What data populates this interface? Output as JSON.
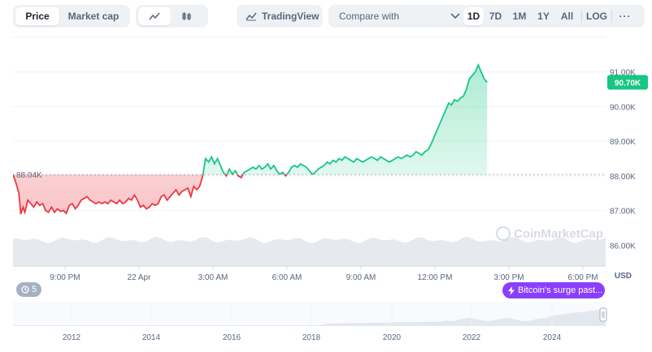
{
  "toolbar": {
    "price_tab": "Price",
    "marketcap_tab": "Market cap",
    "line_icon": "line-chart-icon",
    "candle_icon": "candlestick-icon",
    "tradingview_label": "TradingView",
    "compare_label": "Compare with",
    "ranges": [
      "1D",
      "7D",
      "1M",
      "1Y",
      "All",
      "LOG"
    ],
    "active_range": "1D",
    "more_icon": "more-dots-icon"
  },
  "chart_data": {
    "type": "area",
    "x_ticks": [
      "9:00 PM",
      "22 Apr",
      "3:00 AM",
      "6:00 AM",
      "9:00 AM",
      "12:00 PM",
      "3:00 PM",
      "6:00 PM"
    ],
    "y_ticks": [
      "91.00K",
      "90.00K",
      "89.00K",
      "88.00K",
      "87.00K",
      "86.00K"
    ],
    "y_values": [
      91000,
      90000,
      89000,
      88000,
      87000,
      86000
    ],
    "ylim": [
      85400,
      92000
    ],
    "currency_label": "USD",
    "baseline_label": "88.04K",
    "baseline_value": 88040,
    "current_label": "90.70K",
    "current_value": 90700,
    "watermark": "CoinMarketCap",
    "series": [
      {
        "points": [
          [
            0.0,
            88040
          ],
          [
            0.005,
            87800
          ],
          [
            0.01,
            87500
          ],
          [
            0.013,
            86900
          ],
          [
            0.017,
            87100
          ],
          [
            0.02,
            86950
          ],
          [
            0.025,
            87300
          ],
          [
            0.03,
            87200
          ],
          [
            0.035,
            87100
          ],
          [
            0.04,
            87250
          ],
          [
            0.045,
            87150
          ],
          [
            0.05,
            87200
          ],
          [
            0.055,
            87000
          ],
          [
            0.06,
            86950
          ],
          [
            0.065,
            87100
          ],
          [
            0.07,
            86950
          ],
          [
            0.075,
            87050
          ],
          [
            0.08,
            86980
          ],
          [
            0.085,
            87000
          ],
          [
            0.09,
            86920
          ],
          [
            0.095,
            87150
          ],
          [
            0.1,
            87200
          ],
          [
            0.105,
            87050
          ],
          [
            0.11,
            87150
          ],
          [
            0.115,
            87300
          ],
          [
            0.12,
            87350
          ],
          [
            0.125,
            87400
          ],
          [
            0.13,
            87300
          ],
          [
            0.135,
            87250
          ],
          [
            0.14,
            87200
          ],
          [
            0.145,
            87250
          ],
          [
            0.15,
            87200
          ],
          [
            0.155,
            87250
          ],
          [
            0.16,
            87200
          ],
          [
            0.165,
            87300
          ],
          [
            0.17,
            87250
          ],
          [
            0.175,
            87200
          ],
          [
            0.18,
            87300
          ],
          [
            0.185,
            87200
          ],
          [
            0.19,
            87250
          ],
          [
            0.195,
            87350
          ],
          [
            0.2,
            87300
          ],
          [
            0.205,
            87450
          ],
          [
            0.21,
            87300
          ],
          [
            0.215,
            87100
          ],
          [
            0.22,
            87150
          ],
          [
            0.225,
            87050
          ],
          [
            0.23,
            87100
          ],
          [
            0.235,
            87200
          ],
          [
            0.24,
            87150
          ],
          [
            0.245,
            87200
          ],
          [
            0.25,
            87400
          ],
          [
            0.255,
            87450
          ],
          [
            0.26,
            87300
          ],
          [
            0.265,
            87400
          ],
          [
            0.27,
            87500
          ],
          [
            0.275,
            87600
          ],
          [
            0.28,
            87450
          ],
          [
            0.285,
            87550
          ],
          [
            0.29,
            87600
          ],
          [
            0.295,
            87650
          ],
          [
            0.3,
            87400
          ],
          [
            0.305,
            87700
          ],
          [
            0.31,
            87600
          ],
          [
            0.315,
            87700
          ],
          [
            0.32,
            88000
          ],
          [
            0.325,
            88500
          ],
          [
            0.33,
            88400
          ],
          [
            0.335,
            88550
          ],
          [
            0.34,
            88350
          ],
          [
            0.345,
            88500
          ],
          [
            0.35,
            88300
          ],
          [
            0.355,
            88100
          ],
          [
            0.36,
            88000
          ],
          [
            0.365,
            88200
          ],
          [
            0.37,
            88050
          ],
          [
            0.375,
            88150
          ],
          [
            0.38,
            88000
          ],
          [
            0.385,
            87950
          ],
          [
            0.39,
            88100
          ],
          [
            0.395,
            88150
          ],
          [
            0.4,
            88200
          ],
          [
            0.405,
            88250
          ],
          [
            0.41,
            88200
          ],
          [
            0.415,
            88300
          ],
          [
            0.42,
            88200
          ],
          [
            0.425,
            88250
          ],
          [
            0.43,
            88350
          ],
          [
            0.435,
            88200
          ],
          [
            0.44,
            88300
          ],
          [
            0.445,
            88150
          ],
          [
            0.45,
            88050
          ],
          [
            0.455,
            88100
          ],
          [
            0.46,
            88000
          ],
          [
            0.465,
            88100
          ],
          [
            0.47,
            88250
          ],
          [
            0.475,
            88300
          ],
          [
            0.48,
            88250
          ],
          [
            0.485,
            88350
          ],
          [
            0.49,
            88300
          ],
          [
            0.495,
            88250
          ],
          [
            0.5,
            88150
          ],
          [
            0.505,
            88050
          ],
          [
            0.51,
            88100
          ],
          [
            0.515,
            88200
          ],
          [
            0.52,
            88250
          ],
          [
            0.525,
            88300
          ],
          [
            0.53,
            88400
          ],
          [
            0.535,
            88350
          ],
          [
            0.54,
            88450
          ],
          [
            0.545,
            88400
          ],
          [
            0.55,
            88500
          ],
          [
            0.555,
            88450
          ],
          [
            0.56,
            88550
          ],
          [
            0.565,
            88500
          ],
          [
            0.57,
            88450
          ],
          [
            0.575,
            88400
          ],
          [
            0.58,
            88500
          ],
          [
            0.585,
            88450
          ],
          [
            0.59,
            88400
          ],
          [
            0.595,
            88450
          ],
          [
            0.6,
            88500
          ],
          [
            0.605,
            88550
          ],
          [
            0.61,
            88500
          ],
          [
            0.615,
            88450
          ],
          [
            0.62,
            88550
          ],
          [
            0.625,
            88500
          ],
          [
            0.63,
            88450
          ],
          [
            0.635,
            88400
          ],
          [
            0.64,
            88450
          ],
          [
            0.645,
            88500
          ],
          [
            0.65,
            88550
          ],
          [
            0.655,
            88500
          ],
          [
            0.66,
            88550
          ],
          [
            0.665,
            88600
          ],
          [
            0.67,
            88550
          ],
          [
            0.675,
            88600
          ],
          [
            0.68,
            88700
          ],
          [
            0.685,
            88650
          ],
          [
            0.69,
            88600
          ],
          [
            0.695,
            88700
          ],
          [
            0.7,
            88750
          ],
          [
            0.705,
            88900
          ],
          [
            0.71,
            89100
          ],
          [
            0.715,
            89300
          ],
          [
            0.72,
            89500
          ],
          [
            0.725,
            89700
          ],
          [
            0.73,
            89900
          ],
          [
            0.735,
            90100
          ],
          [
            0.74,
            90050
          ],
          [
            0.745,
            90200
          ],
          [
            0.75,
            90150
          ],
          [
            0.755,
            90250
          ],
          [
            0.76,
            90300
          ],
          [
            0.765,
            90500
          ],
          [
            0.77,
            90800
          ],
          [
            0.775,
            90900
          ],
          [
            0.78,
            91000
          ],
          [
            0.785,
            91200
          ],
          [
            0.79,
            91000
          ],
          [
            0.795,
            90800
          ],
          [
            0.8,
            90700
          ]
        ]
      }
    ],
    "volume_strip": true
  },
  "events": {
    "count_label": "5",
    "news_label": "Bitcoin's surge past..."
  },
  "navigator": {
    "year_ticks": [
      "2012",
      "2014",
      "2016",
      "2018",
      "2020",
      "2022",
      "2024"
    ]
  },
  "colors": {
    "up": "#16c784",
    "down": "#ea3943",
    "muted": "#58667e",
    "grid": "#eff2f5",
    "news": "#8a3ffc"
  }
}
